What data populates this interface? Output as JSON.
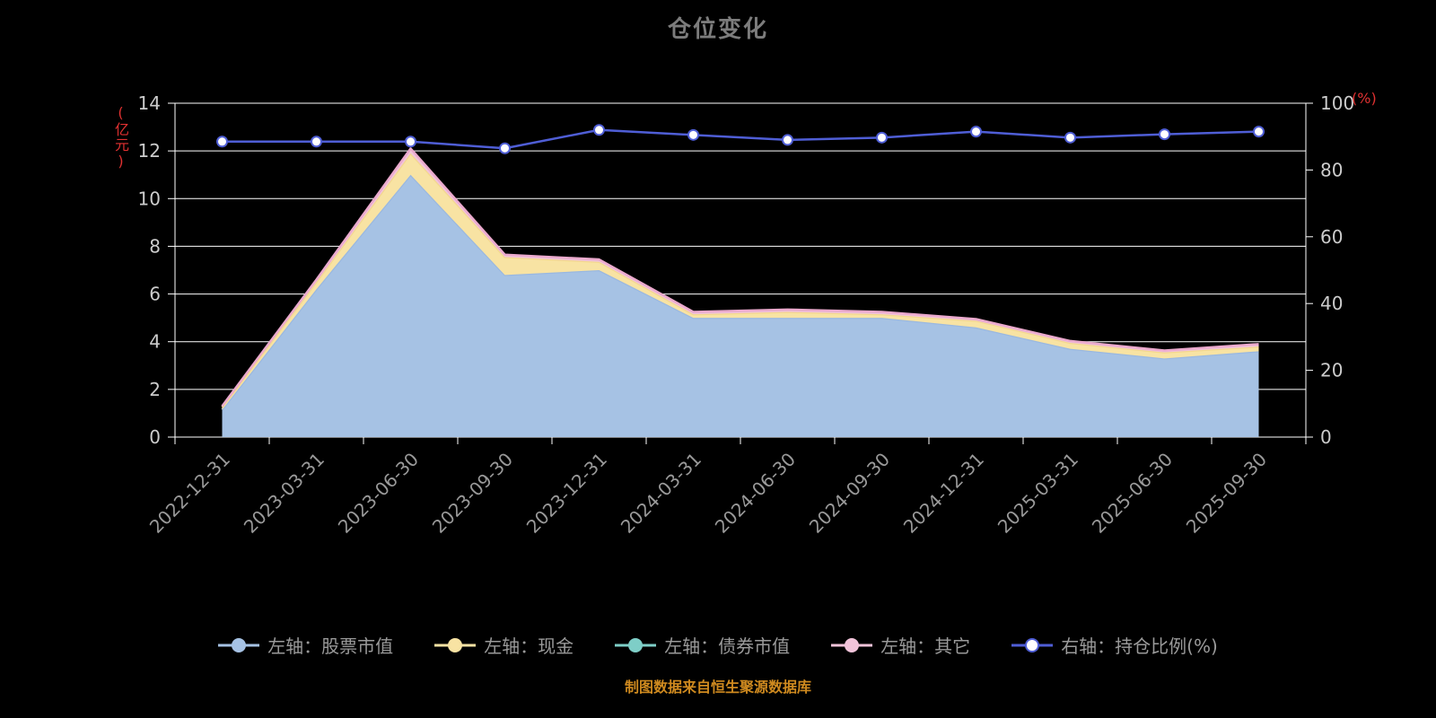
{
  "title": "仓位变化",
  "footer_note": "制图数据来自恒生聚源数据库",
  "colors": {
    "background": "#000000",
    "title": "#7c7c7c",
    "footer": "#cf8a1f",
    "axis_unit": "#e03131",
    "grid": "#ffffff",
    "tick_label": "#cccccc",
    "x_label": "#999999",
    "legend_text": "#9a9a9a"
  },
  "chart_data": {
    "type": "area",
    "title": "仓位变化",
    "grid": true,
    "legend_position": "bottom",
    "categories": [
      "2022-12-31",
      "2023-03-31",
      "2023-06-30",
      "2023-09-30",
      "2023-12-31",
      "2024-03-31",
      "2024-06-30",
      "2024-09-30",
      "2024-12-31",
      "2025-03-31",
      "2025-06-30",
      "2025-09-30"
    ],
    "left_axis": {
      "unit": "(亿元)",
      "min": 0,
      "max": 14,
      "step": 2,
      "ticks": [
        0,
        2,
        4,
        6,
        8,
        10,
        12,
        14
      ]
    },
    "right_axis": {
      "unit": "(%)",
      "min": 0,
      "max": 100,
      "step": 20,
      "ticks": [
        0,
        20,
        40,
        60,
        80,
        100
      ]
    },
    "series": [
      {
        "name": "左轴：股票市值",
        "axis": "left",
        "type": "area",
        "color": "#a6c2e4",
        "line_color": "#9ab8e0",
        "values": [
          1.15,
          6.2,
          11.0,
          6.8,
          7.0,
          5.0,
          5.0,
          5.0,
          4.6,
          3.7,
          3.3,
          3.6
        ]
      },
      {
        "name": "左轴：现金",
        "axis": "left",
        "type": "area",
        "color": "#f8e3a3",
        "line_color": "#f3d88e",
        "values": [
          0.1,
          0.3,
          0.9,
          0.75,
          0.35,
          0.15,
          0.25,
          0.15,
          0.28,
          0.25,
          0.25,
          0.2
        ]
      },
      {
        "name": "左轴：债券市值",
        "axis": "left",
        "type": "area",
        "color": "#7ecec7",
        "line_color": "#7ecec7",
        "values": [
          0,
          0,
          0,
          0,
          0,
          0,
          0,
          0,
          0,
          0,
          0,
          0
        ]
      },
      {
        "name": "左轴：其它",
        "axis": "left",
        "type": "area",
        "color": "#f2c4da",
        "line_color": "#eaa9cd",
        "values": [
          0.05,
          0.1,
          0.2,
          0.1,
          0.1,
          0.1,
          0.1,
          0.1,
          0.07,
          0.08,
          0.08,
          0.1
        ]
      },
      {
        "name": "右轴：持仓比例(%)",
        "axis": "right",
        "type": "line",
        "color": "#4f5ed6",
        "values": [
          88.5,
          88.5,
          88.5,
          86.5,
          92,
          90.5,
          89,
          89.7,
          91.5,
          89.7,
          90.7,
          91.5
        ]
      }
    ]
  }
}
